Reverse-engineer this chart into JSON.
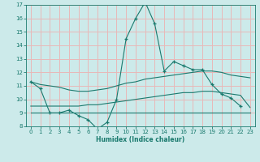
{
  "x": [
    0,
    1,
    2,
    3,
    4,
    5,
    6,
    7,
    8,
    9,
    10,
    11,
    12,
    13,
    14,
    15,
    16,
    17,
    18,
    19,
    20,
    21,
    22,
    23
  ],
  "line_main": [
    11.3,
    10.8,
    9.0,
    9.0,
    9.2,
    8.8,
    8.5,
    7.8,
    8.3,
    10.0,
    14.5,
    16.0,
    17.2,
    15.6,
    12.1,
    12.8,
    12.5,
    12.2,
    12.2,
    11.1,
    10.4,
    10.1,
    9.5,
    null
  ],
  "line_upper": [
    11.3,
    11.1,
    11.0,
    10.9,
    10.7,
    10.6,
    10.6,
    10.7,
    10.8,
    11.0,
    11.2,
    11.3,
    11.5,
    11.6,
    11.7,
    11.8,
    11.9,
    12.0,
    12.1,
    12.1,
    12.0,
    11.8,
    11.7,
    11.6
  ],
  "line_middle": [
    9.5,
    9.5,
    9.5,
    9.5,
    9.5,
    9.5,
    9.6,
    9.6,
    9.7,
    9.8,
    9.9,
    10.0,
    10.1,
    10.2,
    10.3,
    10.4,
    10.5,
    10.5,
    10.6,
    10.6,
    10.5,
    10.4,
    10.3,
    9.4
  ],
  "line_lower": [
    9.0,
    9.0,
    9.0,
    9.0,
    9.0,
    9.0,
    9.0,
    9.0,
    9.0,
    9.0,
    9.0,
    9.0,
    9.0,
    9.0,
    9.0,
    9.0,
    9.0,
    9.0,
    9.0,
    9.0,
    9.0,
    9.0,
    9.0,
    9.0
  ],
  "color": "#1a7a6e",
  "bg_color": "#cceaea",
  "grid_color": "#e8b8b8",
  "ylim": [
    8,
    17
  ],
  "xlim": [
    -0.5,
    23.5
  ],
  "xlabel": "Humidex (Indice chaleur)",
  "yticks": [
    8,
    9,
    10,
    11,
    12,
    13,
    14,
    15,
    16,
    17
  ],
  "xticks": [
    0,
    1,
    2,
    3,
    4,
    5,
    6,
    7,
    8,
    9,
    10,
    11,
    12,
    13,
    14,
    15,
    16,
    17,
    18,
    19,
    20,
    21,
    22,
    23
  ]
}
